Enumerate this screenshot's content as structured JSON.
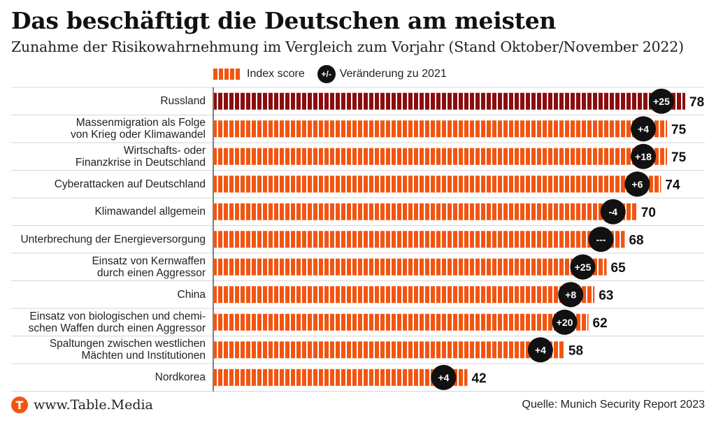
{
  "title": "Das beschäftigt die Deutschen am meisten",
  "subtitle": "Zunahme der Risikowahrnehmung im Vergleich zum Vorjahr (Stand Oktober/November 2022)",
  "legend": {
    "index_label": "Index score",
    "change_symbol": "+/-",
    "change_label": "Veränderung zu 2021"
  },
  "colors": {
    "bar": "#f25511",
    "bar_highlight": "#8b0d0d",
    "badge": "#111111",
    "gridline": "#d6d6d6"
  },
  "chart_data": {
    "type": "bar",
    "orientation": "horizontal",
    "title": "Das beschäftigt die Deutschen am meisten",
    "subtitle": "Zunahme der Risikowahrnehmung im Vergleich zum Vorjahr (Stand Oktober/November 2022)",
    "xlim": [
      0,
      78
    ],
    "categories": [
      [
        "Russland"
      ],
      [
        "Massenmigration als Folge",
        "von Krieg oder Klimawandel"
      ],
      [
        "Wirtschafts- oder",
        "Finanzkrise in Deutschland"
      ],
      [
        "Cyberattacken auf Deutschland"
      ],
      [
        "Klimawandel allgemein"
      ],
      [
        "Unterbrechung der Energieversorgung"
      ],
      [
        "Einsatz von Kernwaffen",
        "durch einen Aggressor"
      ],
      [
        "China"
      ],
      [
        "Einsatz von biologischen und chemi-",
        "schen Waffen durch einen Aggressor"
      ],
      [
        "Spaltungen zwischen westlichen",
        "Mächten und Institutionen"
      ],
      [
        "Nordkorea"
      ]
    ],
    "series": [
      {
        "name": "Index score",
        "values": [
          78,
          75,
          75,
          74,
          70,
          68,
          65,
          63,
          62,
          58,
          42
        ]
      },
      {
        "name": "Veränderung zu 2021",
        "values": [
          "+25",
          "+4",
          "+18",
          "+6",
          "-4",
          "---",
          "+25",
          "+8",
          "+20",
          "+4",
          "+4"
        ]
      }
    ],
    "highlight_index": 0
  },
  "footer": {
    "logo_letter": "T",
    "brand": "www.Table.Media",
    "source": "Quelle: Munich Security Report 2023"
  }
}
